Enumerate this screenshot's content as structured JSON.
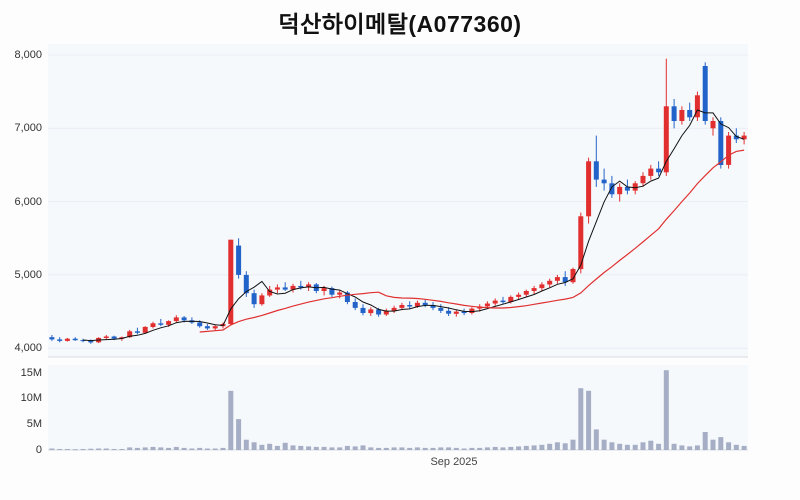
{
  "page": {
    "title": "덕산하이메탈(A077360)"
  },
  "chart_data": {
    "type": "candlestick_with_volume",
    "title": "덕산하이메탈(A077360)",
    "stock_name": "덕산하이메탈",
    "stock_code": "A077360",
    "x_axis": {
      "tick_labels": [
        "Sep 2025"
      ],
      "tick_positions": [
        0.58
      ]
    },
    "price_axis": {
      "tick_labels": [
        "8,000",
        "7,000",
        "6,000",
        "5,000",
        "4,000"
      ],
      "tick_values": [
        8000,
        7000,
        6000,
        5000,
        4000
      ],
      "min": 3880,
      "max": 8150
    },
    "volume_axis": {
      "tick_labels": [
        "15M",
        "10M",
        "5M",
        "0"
      ],
      "tick_values": [
        15,
        10,
        5,
        0
      ],
      "unit": "millions_of_shares",
      "max": 16.5
    },
    "ma_periods": {
      "short": 5,
      "long": 20
    },
    "legend": [
      "candles",
      "ma-short-black",
      "ma-long-red"
    ],
    "grid": "horizontal-faint",
    "colors": {
      "up": "#e12e2e",
      "down": "#2263c9",
      "volume": "#a6aec5",
      "ma_short": "#111111",
      "ma_long": "#e03131",
      "panel_bg": "#f6f9fc",
      "grid": "#e9eef4",
      "axis": "#d6dbe1",
      "title_text": "#111111",
      "tick_text": "#333333"
    },
    "ohlc": [
      [
        4150,
        4180,
        4100,
        4120
      ],
      [
        4120,
        4150,
        4080,
        4100
      ],
      [
        4100,
        4140,
        4090,
        4130
      ],
      [
        4130,
        4150,
        4100,
        4110
      ],
      [
        4110,
        4130,
        4080,
        4100
      ],
      [
        4100,
        4120,
        4060,
        4080
      ],
      [
        4080,
        4150,
        4070,
        4140
      ],
      [
        4140,
        4180,
        4120,
        4160
      ],
      [
        4160,
        4170,
        4110,
        4130
      ],
      [
        4130,
        4160,
        4100,
        4150
      ],
      [
        4150,
        4250,
        4140,
        4230
      ],
      [
        4230,
        4280,
        4190,
        4210
      ],
      [
        4210,
        4300,
        4200,
        4290
      ],
      [
        4290,
        4360,
        4270,
        4340
      ],
      [
        4340,
        4400,
        4300,
        4320
      ],
      [
        4320,
        4380,
        4290,
        4370
      ],
      [
        4370,
        4450,
        4350,
        4420
      ],
      [
        4420,
        4440,
        4350,
        4380
      ],
      [
        4380,
        4420,
        4330,
        4350
      ],
      [
        4350,
        4380,
        4280,
        4300
      ],
      [
        4300,
        4330,
        4250,
        4270
      ],
      [
        4270,
        4320,
        4240,
        4300
      ],
      [
        4300,
        4350,
        4270,
        4330
      ],
      [
        4330,
        5480,
        4310,
        5480
      ],
      [
        5400,
        5500,
        4950,
        5000
      ],
      [
        5000,
        5050,
        4700,
        4750
      ],
      [
        4750,
        4800,
        4550,
        4600
      ],
      [
        4600,
        4750,
        4580,
        4720
      ],
      [
        4720,
        4850,
        4700,
        4800
      ],
      [
        4800,
        4870,
        4750,
        4830
      ],
      [
        4830,
        4900,
        4780,
        4800
      ],
      [
        4800,
        4880,
        4760,
        4850
      ],
      [
        4850,
        4920,
        4800,
        4830
      ],
      [
        4830,
        4900,
        4780,
        4870
      ],
      [
        4870,
        4890,
        4750,
        4780
      ],
      [
        4780,
        4850,
        4720,
        4820
      ],
      [
        4820,
        4840,
        4700,
        4730
      ],
      [
        4730,
        4800,
        4680,
        4760
      ],
      [
        4760,
        4780,
        4600,
        4630
      ],
      [
        4630,
        4680,
        4520,
        4550
      ],
      [
        4550,
        4600,
        4450,
        4480
      ],
      [
        4480,
        4560,
        4440,
        4530
      ],
      [
        4530,
        4550,
        4430,
        4460
      ],
      [
        4460,
        4540,
        4440,
        4510
      ],
      [
        4510,
        4580,
        4480,
        4550
      ],
      [
        4550,
        4620,
        4520,
        4590
      ],
      [
        4590,
        4640,
        4540,
        4570
      ],
      [
        4570,
        4650,
        4550,
        4620
      ],
      [
        4620,
        4660,
        4560,
        4590
      ],
      [
        4590,
        4630,
        4520,
        4550
      ],
      [
        4550,
        4600,
        4480,
        4510
      ],
      [
        4510,
        4560,
        4440,
        4470
      ],
      [
        4470,
        4530,
        4430,
        4500
      ],
      [
        4500,
        4540,
        4450,
        4480
      ],
      [
        4480,
        4560,
        4460,
        4540
      ],
      [
        4540,
        4600,
        4500,
        4570
      ],
      [
        4570,
        4640,
        4540,
        4610
      ],
      [
        4610,
        4680,
        4580,
        4650
      ],
      [
        4650,
        4700,
        4600,
        4630
      ],
      [
        4630,
        4720,
        4610,
        4700
      ],
      [
        4700,
        4760,
        4660,
        4730
      ],
      [
        4730,
        4800,
        4700,
        4780
      ],
      [
        4780,
        4850,
        4740,
        4820
      ],
      [
        4820,
        4900,
        4780,
        4870
      ],
      [
        4870,
        4950,
        4830,
        4920
      ],
      [
        4920,
        5000,
        4880,
        4970
      ],
      [
        4970,
        5050,
        4850,
        4900
      ],
      [
        4900,
        5100,
        4880,
        5080
      ],
      [
        5080,
        5850,
        5020,
        5800
      ],
      [
        5800,
        6600,
        5700,
        6550
      ],
      [
        6550,
        6900,
        6200,
        6300
      ],
      [
        6300,
        6450,
        6150,
        6250
      ],
      [
        6250,
        6350,
        6050,
        6100
      ],
      [
        6100,
        6250,
        6000,
        6200
      ],
      [
        6200,
        6300,
        6100,
        6150
      ],
      [
        6150,
        6280,
        6100,
        6250
      ],
      [
        6250,
        6400,
        6200,
        6350
      ],
      [
        6350,
        6500,
        6300,
        6450
      ],
      [
        6450,
        6550,
        6350,
        6400
      ],
      [
        6400,
        7950,
        6350,
        7300
      ],
      [
        7300,
        7400,
        7000,
        7100
      ],
      [
        7100,
        7300,
        7050,
        7250
      ],
      [
        7250,
        7350,
        7100,
        7150
      ],
      [
        7150,
        7500,
        7100,
        7450
      ],
      [
        7850,
        7900,
        7050,
        7100
      ],
      [
        7000,
        7150,
        6900,
        7100
      ],
      [
        7100,
        7150,
        6450,
        6500
      ],
      [
        6500,
        6950,
        6450,
        6900
      ],
      [
        6900,
        7000,
        6800,
        6850
      ],
      [
        6850,
        6950,
        6780,
        6900
      ]
    ],
    "volume_m": [
      0.3,
      0.2,
      0.2,
      0.15,
      0.2,
      0.25,
      0.3,
      0.3,
      0.2,
      0.2,
      0.5,
      0.4,
      0.5,
      0.6,
      0.5,
      0.4,
      0.6,
      0.4,
      0.3,
      0.4,
      0.3,
      0.3,
      0.4,
      11.5,
      6,
      2,
      1.5,
      1,
      1.2,
      0.8,
      1.4,
      0.9,
      0.8,
      0.7,
      0.6,
      0.6,
      0.5,
      0.5,
      0.8,
      0.7,
      0.9,
      0.5,
      0.4,
      0.4,
      0.5,
      0.5,
      0.4,
      0.5,
      0.4,
      0.4,
      0.5,
      0.5,
      0.4,
      0.3,
      0.4,
      0.4,
      0.5,
      0.6,
      0.5,
      0.6,
      0.7,
      0.8,
      0.9,
      1,
      1.2,
      1.5,
      1.3,
      2,
      12,
      11.5,
      4,
      2,
      1.5,
      1.2,
      1,
      1,
      1.5,
      1.8,
      1.2,
      15.5,
      1.2,
      0.9,
      0.7,
      0.9,
      3.5,
      2,
      2.5,
      1.5,
      1,
      0.8
    ]
  }
}
